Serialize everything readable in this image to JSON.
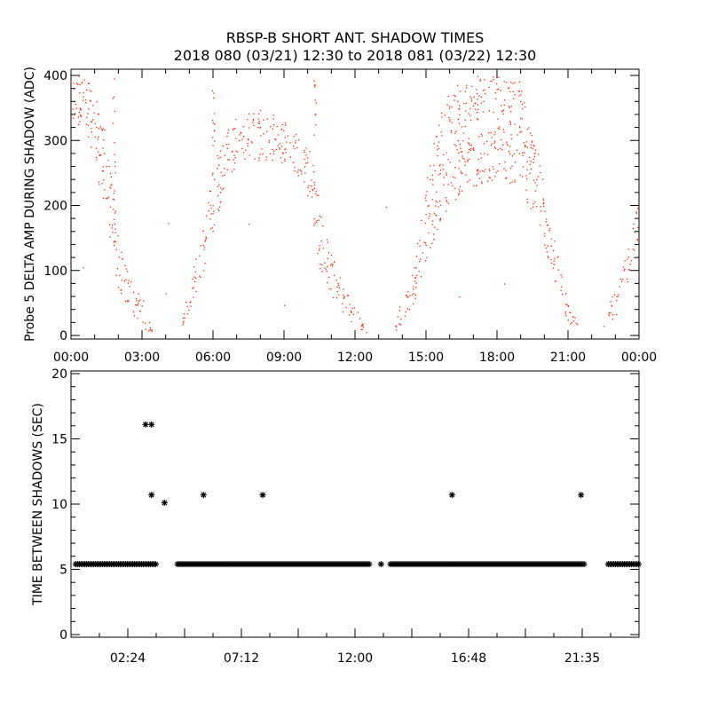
{
  "title": "RBSP-B SHORT ANT. SHADOW TIMES",
  "subtitle": "2018 080 (03/21) 12:30 to 2018 081 (03/22) 12:30",
  "chart_data": [
    {
      "type": "scatter",
      "ylabel": "Probe 5 DELTA AMP DURING SHADOW (ADC)",
      "xlabel": "",
      "xlim": [
        0,
        24
      ],
      "ylim": [
        0,
        400
      ],
      "x_unit": "hours",
      "xticks": [
        "00:00",
        "03:00",
        "06:00",
        "09:00",
        "12:00",
        "15:00",
        "18:00",
        "21:00",
        "00:00"
      ],
      "yticks": [
        "0",
        "100",
        "200",
        "300",
        "400"
      ],
      "color": "#ff2200",
      "note_bands_format": "each band: points [hour, low ADC, high ADC] over which dense dots occur",
      "bands": [
        {
          "points": [
            [
              0.0,
              300,
              400
            ],
            [
              0.5,
              330,
              400
            ],
            [
              1.0,
              270,
              385
            ],
            [
              1.5,
              160,
              300
            ],
            [
              2.0,
              70,
              150
            ],
            [
              2.5,
              30,
              85
            ],
            [
              3.0,
              15,
              60
            ],
            [
              3.4,
              0,
              10
            ]
          ]
        },
        {
          "points": [
            [
              1.75,
              180,
              400
            ],
            [
              1.85,
              150,
              400
            ]
          ]
        },
        {
          "points": [
            [
              4.7,
              15,
              30
            ],
            [
              5.0,
              40,
              80
            ],
            [
              5.5,
              90,
              160
            ],
            [
              6.0,
              150,
              260
            ],
            [
              6.5,
              240,
              320
            ],
            [
              7.0,
              260,
              335
            ],
            [
              8.0,
              270,
              350
            ],
            [
              9.0,
              265,
              335
            ],
            [
              9.8,
              240,
              300
            ],
            [
              10.2,
              180,
              290
            ],
            [
              10.5,
              100,
              200
            ],
            [
              11.0,
              60,
              125
            ],
            [
              11.5,
              30,
              80
            ],
            [
              12.0,
              15,
              45
            ],
            [
              12.5,
              0,
              10
            ]
          ]
        },
        {
          "points": [
            [
              5.95,
              250,
              400
            ],
            [
              6.05,
              250,
              400
            ]
          ]
        },
        {
          "points": [
            [
              10.25,
              300,
              400
            ],
            [
              10.35,
              300,
              400
            ]
          ]
        },
        {
          "points": [
            [
              13.7,
              5,
              25
            ],
            [
              14.0,
              20,
              60
            ],
            [
              14.5,
              50,
              110
            ],
            [
              15.0,
              110,
              250
            ],
            [
              15.5,
              170,
              330
            ],
            [
              16.0,
              200,
              380
            ],
            [
              16.5,
              220,
              400
            ],
            [
              17.0,
              230,
              400
            ],
            [
              18.0,
              240,
              400
            ],
            [
              19.0,
              230,
              400
            ],
            [
              19.5,
              180,
              320
            ],
            [
              20.0,
              130,
              230
            ],
            [
              20.5,
              70,
              140
            ],
            [
              21.0,
              20,
              50
            ],
            [
              21.5,
              0,
              10
            ]
          ]
        },
        {
          "points": [
            [
              22.7,
              20,
              50
            ],
            [
              23.0,
              30,
              70
            ],
            [
              23.5,
              80,
              130
            ],
            [
              24.0,
              150,
              215
            ]
          ]
        }
      ],
      "isolated_points": [
        [
          0.5,
          105
        ],
        [
          4.0,
          65
        ],
        [
          4.1,
          173
        ],
        [
          7.5,
          172
        ],
        [
          9.0,
          47
        ],
        [
          13.3,
          198
        ],
        [
          16.4,
          60
        ],
        [
          18.3,
          80
        ],
        [
          22.5,
          15
        ]
      ]
    },
    {
      "type": "scatter",
      "marker": "asterisk",
      "ylabel": "TIME BETWEEN SHADOWS (SEC)",
      "xlabel": "",
      "xlim": [
        0,
        24
      ],
      "ylim": [
        0,
        20
      ],
      "x_unit": "hours",
      "xticks": [
        "02:24",
        "07:12",
        "12:00",
        "16:48",
        "21:35"
      ],
      "yticks": [
        "0",
        "5",
        "10",
        "15",
        "20"
      ],
      "color": "#000000",
      "baseline_value": 5.4,
      "baseline_segments_hours": [
        [
          0.2,
          3.6
        ],
        [
          4.5,
          12.6
        ],
        [
          13.1,
          13.1
        ],
        [
          13.5,
          21.7
        ],
        [
          22.7,
          24.0
        ]
      ],
      "outliers": [
        [
          3.15,
          16.1
        ],
        [
          3.4,
          16.1
        ],
        [
          3.4,
          10.7
        ],
        [
          3.95,
          10.1
        ],
        [
          5.6,
          10.7
        ],
        [
          8.1,
          10.7
        ],
        [
          16.1,
          10.7
        ],
        [
          21.55,
          10.7
        ]
      ]
    }
  ]
}
